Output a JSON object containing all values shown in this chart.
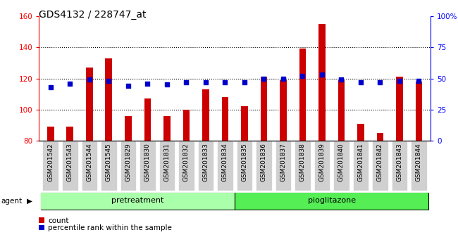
{
  "title": "GDS4132 / 228747_at",
  "categories": [
    "GSM201542",
    "GSM201543",
    "GSM201544",
    "GSM201545",
    "GSM201829",
    "GSM201830",
    "GSM201831",
    "GSM201832",
    "GSM201833",
    "GSM201834",
    "GSM201835",
    "GSM201836",
    "GSM201837",
    "GSM201838",
    "GSM201839",
    "GSM201840",
    "GSM201841",
    "GSM201842",
    "GSM201843",
    "GSM201844"
  ],
  "count_values": [
    89,
    89,
    127,
    133,
    96,
    107,
    96,
    100,
    113,
    108,
    102,
    121,
    119,
    139,
    155,
    119,
    91,
    85,
    121,
    118
  ],
  "percentile_values": [
    43,
    46,
    49,
    48,
    44,
    46,
    45,
    47,
    47,
    47,
    47,
    50,
    50,
    52,
    53,
    49,
    47,
    47,
    48,
    48
  ],
  "bar_color": "#cc0000",
  "dot_color": "#0000cc",
  "ylim_left": [
    80,
    160
  ],
  "ylim_right": [
    0,
    100
  ],
  "yticks_left": [
    80,
    100,
    120,
    140,
    160
  ],
  "yticks_right": [
    0,
    25,
    50,
    75,
    100
  ],
  "yticklabels_right": [
    "0",
    "25",
    "50",
    "75",
    "100%"
  ],
  "pretreatment_count": 10,
  "pretreatment_label": "pretreatment",
  "pioglitazone_label": "pioglitazone",
  "agent_label": "agent",
  "legend_count_label": "count",
  "legend_percentile_label": "percentile rank within the sample",
  "pretreatment_color": "#aaffaa",
  "pioglitazone_color": "#55ee55",
  "tick_bg_color": "#d0d0d0",
  "bar_width": 0.35,
  "title_fontsize": 10,
  "tick_fontsize": 6.5
}
